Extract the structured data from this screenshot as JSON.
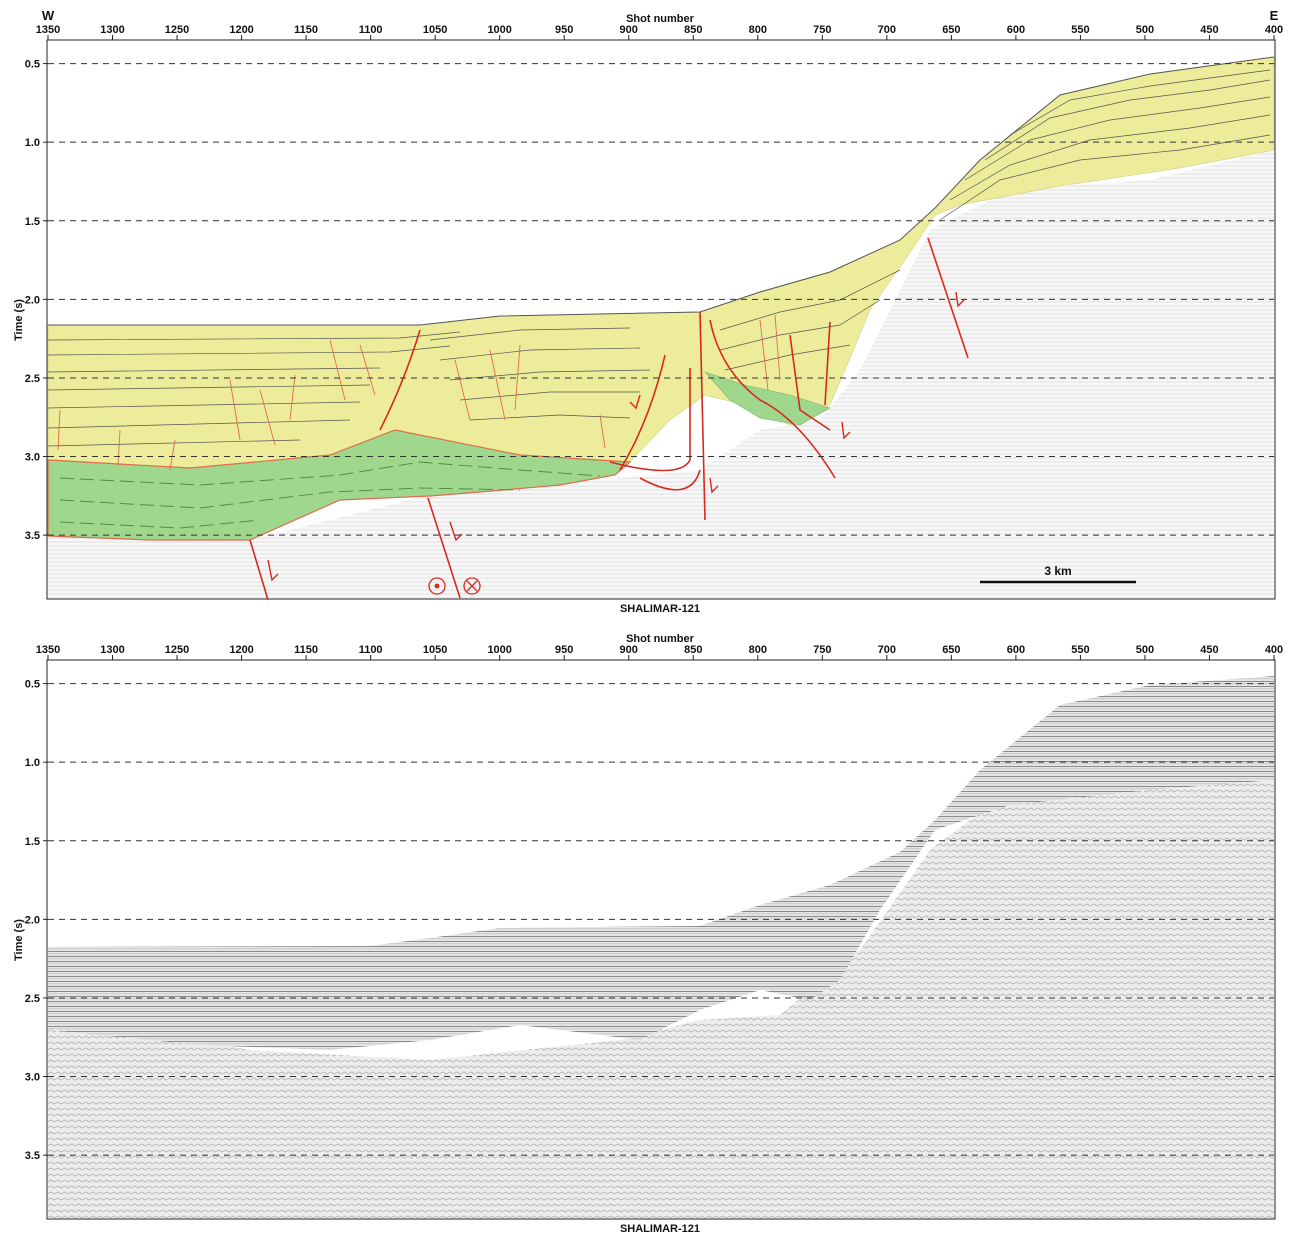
{
  "figure": {
    "direction_left": "W",
    "direction_right": "E",
    "x_axis_title": "Shot number",
    "y_axis_title": "Time (s)",
    "x_ticks": [
      "1350",
      "1300",
      "1250",
      "1200",
      "1150",
      "1100",
      "1050",
      "1000",
      "950",
      "900",
      "850",
      "800",
      "750",
      "700",
      "650",
      "600",
      "550",
      "500",
      "450",
      "400"
    ],
    "y_ticks": [
      "0.5",
      "1.0",
      "1.5",
      "2.0",
      "2.5",
      "3.0",
      "3.5"
    ],
    "x_range": [
      1350,
      400
    ],
    "y_range": [
      0.35,
      3.9
    ],
    "line_name": "SHALIMAR-121",
    "scale_bar_label": "3 km",
    "colors": {
      "upper_unit": "#ecec9a",
      "lower_unit": "#9fd88c",
      "faults": "#d9281d",
      "reflectors": "#444444",
      "grid": "#333333"
    }
  },
  "top_panel": {
    "name": "interpreted-section"
  },
  "bottom_panel": {
    "name": "uninterpreted-section"
  }
}
